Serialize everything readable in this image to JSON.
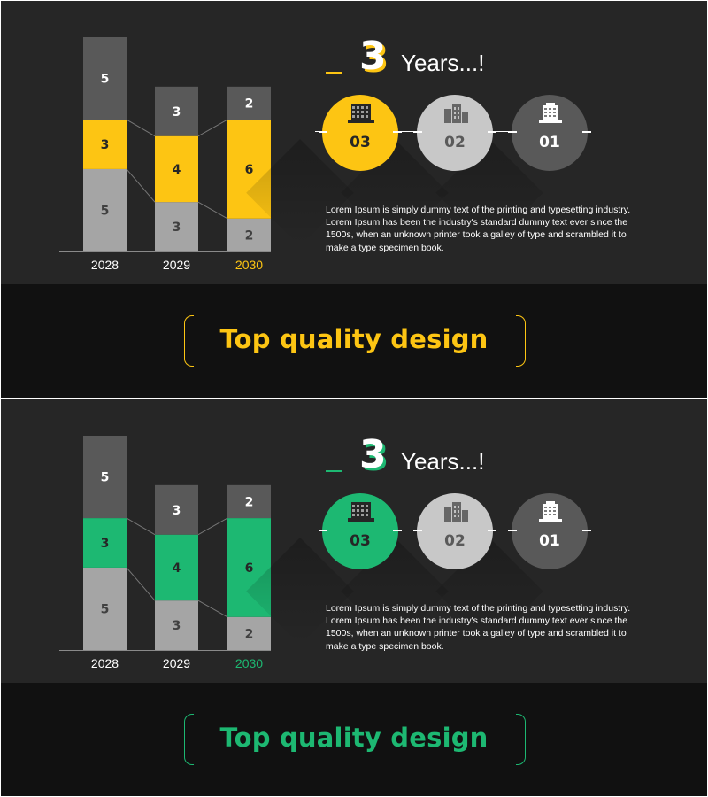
{
  "slides": [
    {
      "accent": "#FDC513",
      "title_number": "3",
      "title_text": "Years...!",
      "circles": [
        {
          "label": "03",
          "icon": "office-building-icon",
          "active": true
        },
        {
          "label": "02",
          "icon": "city-buildings-icon",
          "active": false
        },
        {
          "label": "01",
          "icon": "company-building-icon",
          "active": false
        }
      ],
      "description": "Lorem Ipsum is simply dummy text of the printing and typesetting industry. Lorem Ipsum has been the industry's standard dummy text ever since the 1500s, when an unknown printer took a galley of type and scrambled it to make a type specimen book.",
      "tagline": "Top quality design",
      "chart_data": {
        "type": "bar",
        "stacked": true,
        "categories": [
          "2028",
          "2029",
          "2030"
        ],
        "highlight_category": "2030",
        "series": [
          {
            "values": [
              5,
              3,
              2
            ],
            "color": "#A5A5A5"
          },
          {
            "values": [
              3,
              4,
              6
            ],
            "color": "#FDC513"
          },
          {
            "values": [
              5,
              3,
              2
            ],
            "color": "#595959"
          }
        ],
        "ylim": [
          0,
          13
        ],
        "grid": false
      }
    },
    {
      "accent": "#1DB872",
      "title_number": "3",
      "title_text": "Years...!",
      "circles": [
        {
          "label": "03",
          "icon": "office-building-icon",
          "active": true
        },
        {
          "label": "02",
          "icon": "city-buildings-icon",
          "active": false
        },
        {
          "label": "01",
          "icon": "company-building-icon",
          "active": false
        }
      ],
      "description": "Lorem Ipsum is simply dummy text of the printing and typesetting industry. Lorem Ipsum has been the industry's standard dummy text ever since the 1500s, when an unknown printer took a galley of type and scrambled it to make a type specimen book.",
      "tagline": "Top quality design",
      "chart_data": {
        "type": "bar",
        "stacked": true,
        "categories": [
          "2028",
          "2029",
          "2030"
        ],
        "highlight_category": "2030",
        "series": [
          {
            "values": [
              5,
              3,
              2
            ],
            "color": "#A5A5A5"
          },
          {
            "values": [
              3,
              4,
              6
            ],
            "color": "#1DB872"
          },
          {
            "values": [
              5,
              3,
              2
            ],
            "color": "#595959"
          }
        ],
        "ylim": [
          0,
          13
        ],
        "grid": false
      }
    }
  ]
}
